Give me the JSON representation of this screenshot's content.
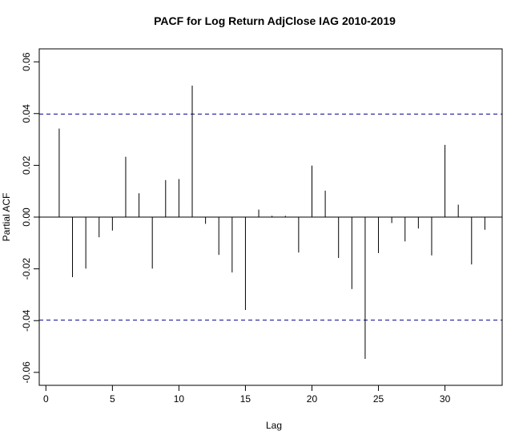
{
  "chart_data": {
    "type": "bar",
    "title": "PACF for Log Return AdjClose IAG 2010-2019",
    "xlabel": "Lag",
    "ylabel": "Partial ACF",
    "xlim": [
      -0.5,
      34.3
    ],
    "ylim": [
      -0.065,
      0.065
    ],
    "x_ticks": [
      0,
      5,
      10,
      15,
      20,
      25,
      30
    ],
    "y_ticks": [
      -0.06,
      -0.04,
      -0.02,
      0.0,
      0.02,
      0.04,
      0.06
    ],
    "x_tick_labels": [
      "0",
      "5",
      "10",
      "15",
      "20",
      "25",
      "30"
    ],
    "y_tick_labels": [
      "-0.06",
      "-0.04",
      "-0.02",
      "0.00",
      "0.02",
      "0.04",
      "0.06"
    ],
    "grid": false,
    "confidence_bounds": [
      0.0398,
      -0.0398
    ],
    "colors": {
      "bars": "#000000",
      "confidence": "#00008B",
      "zero_line": "#000000"
    },
    "x": [
      1,
      2,
      3,
      4,
      5,
      6,
      7,
      8,
      9,
      10,
      11,
      12,
      13,
      14,
      15,
      16,
      17,
      18,
      19,
      20,
      21,
      22,
      23,
      24,
      25,
      26,
      27,
      28,
      29,
      30,
      31,
      32,
      33
    ],
    "values": [
      0.0342,
      -0.0232,
      -0.0199,
      -0.0078,
      -0.0052,
      0.0233,
      0.0092,
      -0.0199,
      0.0143,
      0.0147,
      0.0508,
      -0.0026,
      -0.0146,
      -0.0214,
      -0.0359,
      0.0029,
      0.0005,
      0.0005,
      -0.0137,
      0.0199,
      0.0102,
      -0.0158,
      -0.0278,
      -0.0548,
      -0.0139,
      -0.0023,
      -0.0094,
      -0.0044,
      -0.0148,
      0.0279,
      0.0048,
      -0.0183,
      -0.0049
    ]
  }
}
